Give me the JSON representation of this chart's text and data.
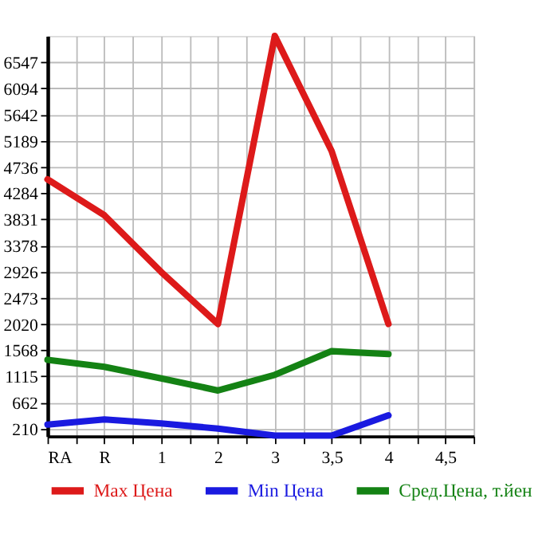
{
  "chart_data": {
    "type": "line",
    "categories": [
      "RA",
      "R",
      "1",
      "2",
      "3",
      "3,5",
      "4",
      "4,5"
    ],
    "series": [
      {
        "name": "Max Цена",
        "color": "#dd1a1a",
        "values": [
          4520,
          3900,
          2920,
          2020,
          7000,
          5010,
          2020,
          null
        ]
      },
      {
        "name": "Min Цена",
        "color": "#1a1ae0",
        "values": [
          280,
          370,
          300,
          210,
          90,
          90,
          440,
          null
        ]
      },
      {
        "name": "Сред.Цена, т.йен",
        "color": "#148214",
        "values": [
          1400,
          1280,
          1080,
          870,
          1140,
          1550,
          1500,
          null
        ]
      }
    ],
    "ylim": [
      80,
      7000
    ],
    "yticks": [
      210,
      662,
      1115,
      1568,
      2020,
      2473,
      2926,
      3378,
      3831,
      4284,
      4736,
      5189,
      5642,
      6094,
      6547
    ],
    "grid": true,
    "legend": "bottom",
    "marker": "none",
    "line_style": "solid"
  }
}
